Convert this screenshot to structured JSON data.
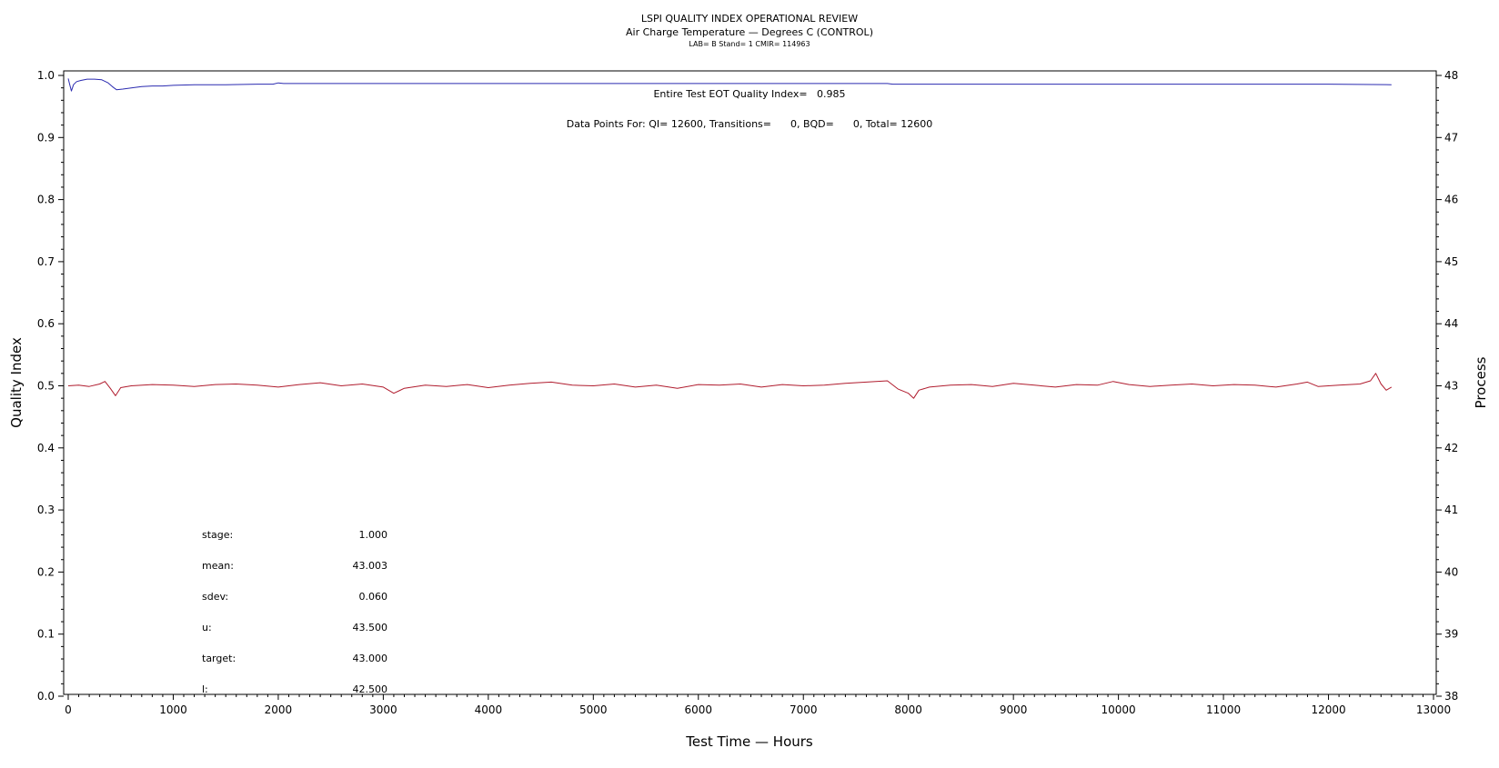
{
  "chart_data": {
    "type": "line",
    "title": "LSPI QUALITY INDEX OPERATIONAL REVIEW",
    "subtitle": "Air Charge Temperature — Degrees C (CONTROL)",
    "subtitle2": "LAB= B Stand= 1 CMIR= 114963",
    "xlabel": "Test Time — Hours",
    "ylabel": "Quality Index",
    "y2label": "Process",
    "xlim": [
      0,
      13000
    ],
    "ylim": [
      0.0,
      1.0
    ],
    "y2lim": [
      38,
      48
    ],
    "xticks": [
      "0",
      "1000",
      "2000",
      "3000",
      "4000",
      "5000",
      "6000",
      "7000",
      "8000",
      "9000",
      "10000",
      "11000",
      "12000",
      "13000"
    ],
    "yticks": [
      "0.0",
      "0.1",
      "0.2",
      "0.3",
      "0.4",
      "0.5",
      "0.6",
      "0.7",
      "0.8",
      "0.9",
      "1.0"
    ],
    "y2ticks": [
      "38",
      "39",
      "40",
      "41",
      "42",
      "43",
      "44",
      "45",
      "46",
      "47",
      "48"
    ],
    "grid": false,
    "annotations": {
      "quality_index": "Entire Test EOT Quality Index=   0.985",
      "data_points": "Data Points For: QI= 12600, Transitions=      0, BQD=      0, Total= 12600"
    },
    "stats": [
      {
        "label": "stage:",
        "value": "1.000"
      },
      {
        "label": "mean:",
        "value": "43.003"
      },
      {
        "label": "sdev:",
        "value": "0.060"
      },
      {
        "label": "u:",
        "value": "43.500"
      },
      {
        "label": "target:",
        "value": "43.000"
      },
      {
        "label": "l:",
        "value": "42.500"
      }
    ],
    "series": [
      {
        "axis": "left",
        "color": "#2b2bb0",
        "x": [
          0,
          15,
          30,
          50,
          80,
          120,
          180,
          250,
          320,
          380,
          420,
          460,
          520,
          600,
          700,
          800,
          900,
          1000,
          1200,
          1500,
          1800,
          1950,
          2000,
          2050,
          2500,
          3000,
          4000,
          5000,
          6000,
          7000,
          7800,
          7850,
          8000,
          9000,
          10000,
          11000,
          12000,
          12600
        ],
        "values": [
          0.995,
          0.985,
          0.975,
          0.985,
          0.99,
          0.992,
          0.994,
          0.994,
          0.993,
          0.988,
          0.982,
          0.977,
          0.978,
          0.98,
          0.982,
          0.983,
          0.983,
          0.984,
          0.985,
          0.985,
          0.986,
          0.986,
          0.988,
          0.987,
          0.987,
          0.987,
          0.987,
          0.987,
          0.987,
          0.987,
          0.987,
          0.986,
          0.986,
          0.986,
          0.986,
          0.986,
          0.986,
          0.985
        ]
      },
      {
        "axis": "right",
        "color": "#b01c2e",
        "x": [
          0,
          100,
          200,
          300,
          350,
          400,
          450,
          500,
          600,
          800,
          1000,
          1200,
          1400,
          1600,
          1800,
          2000,
          2200,
          2400,
          2600,
          2800,
          3000,
          3100,
          3150,
          3200,
          3400,
          3600,
          3800,
          4000,
          4200,
          4400,
          4600,
          4800,
          5000,
          5200,
          5400,
          5600,
          5800,
          6000,
          6200,
          6400,
          6600,
          6800,
          7000,
          7200,
          7400,
          7600,
          7800,
          7900,
          8000,
          8050,
          8100,
          8200,
          8400,
          8600,
          8800,
          9000,
          9200,
          9400,
          9600,
          9800,
          9950,
          10100,
          10300,
          10500,
          10700,
          10900,
          11100,
          11300,
          11500,
          11700,
          11800,
          11900,
          12100,
          12300,
          12400,
          12450,
          12500,
          12550,
          12600
        ],
        "values": [
          43.0,
          43.01,
          42.99,
          43.03,
          43.07,
          42.96,
          42.84,
          42.97,
          43.0,
          43.02,
          43.01,
          42.99,
          43.02,
          43.03,
          43.01,
          42.98,
          43.02,
          43.05,
          43.0,
          43.03,
          42.98,
          42.88,
          42.92,
          42.96,
          43.01,
          42.99,
          43.02,
          42.97,
          43.01,
          43.04,
          43.06,
          43.01,
          43.0,
          43.03,
          42.98,
          43.01,
          42.96,
          43.02,
          43.01,
          43.03,
          42.98,
          43.02,
          43.0,
          43.01,
          43.04,
          43.06,
          43.08,
          42.95,
          42.88,
          42.8,
          42.93,
          42.98,
          43.01,
          43.02,
          42.99,
          43.04,
          43.01,
          42.98,
          43.02,
          43.01,
          43.07,
          43.02,
          42.99,
          43.01,
          43.03,
          43.0,
          43.02,
          43.01,
          42.98,
          43.03,
          43.06,
          42.99,
          43.01,
          43.03,
          43.08,
          43.2,
          43.03,
          42.93,
          42.98
        ]
      }
    ]
  }
}
